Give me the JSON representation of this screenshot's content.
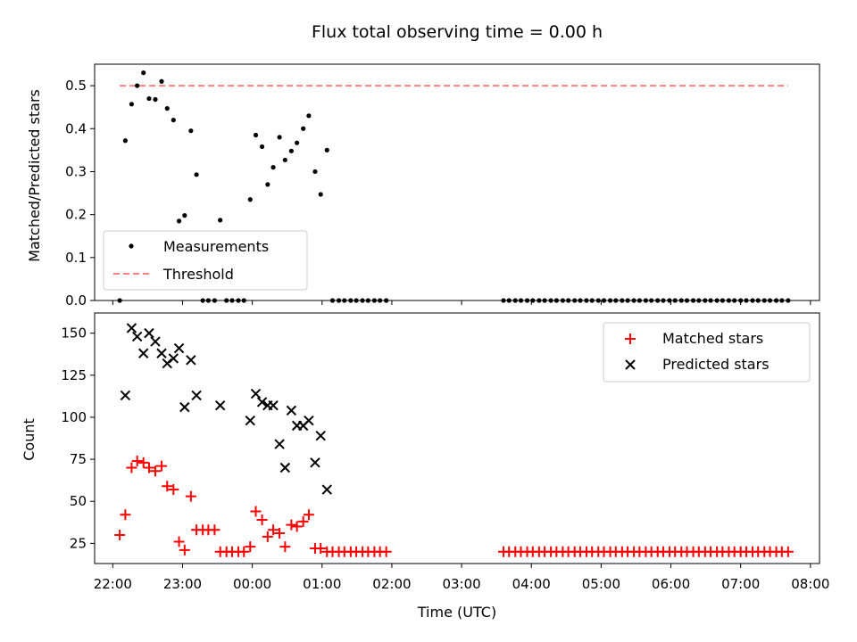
{
  "chart_data": [
    {
      "type": "scatter",
      "title": "Flux total observing time = 0.00 h",
      "xlabel": "",
      "ylabel": "Matched/Predicted stars",
      "ylim": [
        0,
        0.55
      ],
      "yticks": [
        "0.0",
        "0.1",
        "0.2",
        "0.3",
        "0.4",
        "0.5"
      ],
      "ytick_values": [
        0,
        0.1,
        0.2,
        0.3,
        0.4,
        0.5
      ],
      "legend_position": "bottom-left",
      "series": [
        {
          "name": "Measurements",
          "marker": "dot",
          "color": "#000000",
          "points": [
            [
              22.1,
              0
            ],
            [
              22.18,
              0.372
            ],
            [
              22.27,
              0.457
            ],
            [
              22.35,
              0.5
            ],
            [
              22.44,
              0.53
            ],
            [
              22.52,
              0.47
            ],
            [
              22.61,
              0.468
            ],
            [
              22.7,
              0.51
            ],
            [
              22.78,
              0.447
            ],
            [
              22.87,
              0.42
            ],
            [
              22.95,
              0.185
            ],
            [
              23.03,
              0.198
            ],
            [
              23.12,
              0.395
            ],
            [
              23.2,
              0.293
            ],
            [
              23.29,
              0
            ],
            [
              23.37,
              0
            ],
            [
              23.46,
              0
            ],
            [
              23.54,
              0.187
            ],
            [
              23.63,
              0
            ],
            [
              23.71,
              0
            ],
            [
              23.8,
              0
            ],
            [
              23.88,
              0
            ],
            [
              23.97,
              0.235
            ],
            [
              24.05,
              0.385
            ],
            [
              24.14,
              0.358
            ],
            [
              24.22,
              0.27
            ],
            [
              24.3,
              0.31
            ],
            [
              24.39,
              0.38
            ],
            [
              24.47,
              0.327
            ],
            [
              24.56,
              0.348
            ],
            [
              24.64,
              0.367
            ],
            [
              24.73,
              0.4
            ],
            [
              24.81,
              0.43
            ],
            [
              24.9,
              0.3
            ],
            [
              24.98,
              0.247
            ],
            [
              25.07,
              0.35
            ],
            [
              25.15,
              0
            ],
            [
              25.24,
              0
            ],
            [
              25.32,
              0
            ],
            [
              25.41,
              0
            ],
            [
              25.49,
              0
            ],
            [
              25.58,
              0
            ],
            [
              25.66,
              0
            ],
            [
              25.75,
              0
            ],
            [
              25.83,
              0
            ],
            [
              25.92,
              0
            ],
            [
              27.6,
              0
            ],
            [
              27.68,
              0
            ],
            [
              27.77,
              0
            ],
            [
              27.85,
              0
            ],
            [
              27.94,
              0
            ],
            [
              28.02,
              0
            ],
            [
              28.11,
              0
            ],
            [
              28.19,
              0
            ],
            [
              28.28,
              0
            ],
            [
              28.36,
              0
            ],
            [
              28.45,
              0
            ],
            [
              28.53,
              0
            ],
            [
              28.62,
              0
            ],
            [
              28.7,
              0
            ],
            [
              28.79,
              0
            ],
            [
              28.87,
              0
            ],
            [
              28.96,
              0
            ],
            [
              29.04,
              0
            ],
            [
              29.13,
              0
            ],
            [
              29.21,
              0
            ],
            [
              29.3,
              0
            ],
            [
              29.38,
              0
            ],
            [
              29.47,
              0
            ],
            [
              29.55,
              0
            ],
            [
              29.64,
              0
            ],
            [
              29.72,
              0
            ],
            [
              29.81,
              0
            ],
            [
              29.89,
              0
            ],
            [
              29.98,
              0
            ],
            [
              30.06,
              0
            ],
            [
              30.15,
              0
            ],
            [
              30.23,
              0
            ],
            [
              30.32,
              0
            ],
            [
              30.4,
              0
            ],
            [
              30.49,
              0
            ],
            [
              30.57,
              0
            ],
            [
              30.66,
              0
            ],
            [
              30.74,
              0
            ],
            [
              30.83,
              0
            ],
            [
              30.91,
              0
            ],
            [
              31.0,
              0
            ],
            [
              31.08,
              0
            ],
            [
              31.17,
              0
            ],
            [
              31.25,
              0
            ],
            [
              31.34,
              0
            ],
            [
              31.42,
              0
            ],
            [
              31.51,
              0
            ],
            [
              31.59,
              0
            ],
            [
              31.68,
              0
            ]
          ]
        },
        {
          "name": "Threshold",
          "marker": "dashed-line",
          "color": "#ff8080",
          "points": [
            [
              22.1,
              0.5
            ],
            [
              31.68,
              0.5
            ]
          ]
        }
      ]
    },
    {
      "type": "scatter",
      "title": "",
      "xlabel": "Time (UTC)",
      "ylabel": "Count",
      "xlim": [
        21.74,
        32.13
      ],
      "ylim": [
        13,
        162
      ],
      "yticks": [
        "25",
        "50",
        "75",
        "100",
        "125",
        "150"
      ],
      "ytick_values": [
        25,
        50,
        75,
        100,
        125,
        150
      ],
      "xtick_values": [
        22,
        23,
        24,
        25,
        26,
        27,
        28,
        29,
        30,
        31,
        32
      ],
      "xticks": [
        "22:00",
        "23:00",
        "00:00",
        "01:00",
        "02:00",
        "03:00",
        "04:00",
        "05:00",
        "06:00",
        "07:00",
        "08:00"
      ],
      "legend_position": "top-right",
      "series": [
        {
          "name": "Matched stars",
          "marker": "plus",
          "color": "#ff0000",
          "points": [
            [
              22.1,
              30
            ],
            [
              22.18,
              42
            ],
            [
              22.27,
              70
            ],
            [
              22.35,
              74
            ],
            [
              22.44,
              73
            ],
            [
              22.52,
              70
            ],
            [
              22.61,
              68
            ],
            [
              22.7,
              71
            ],
            [
              22.78,
              59
            ],
            [
              22.87,
              57
            ],
            [
              22.95,
              26
            ],
            [
              23.03,
              21
            ],
            [
              23.12,
              53
            ],
            [
              23.2,
              33
            ],
            [
              23.29,
              33
            ],
            [
              23.37,
              33
            ],
            [
              23.46,
              33
            ],
            [
              23.54,
              20
            ],
            [
              23.63,
              20
            ],
            [
              23.71,
              20
            ],
            [
              23.8,
              20
            ],
            [
              23.88,
              20
            ],
            [
              23.97,
              23
            ],
            [
              24.05,
              44
            ],
            [
              24.14,
              39
            ],
            [
              24.22,
              29
            ],
            [
              24.3,
              33
            ],
            [
              24.39,
              31
            ],
            [
              24.47,
              23
            ],
            [
              24.56,
              36
            ],
            [
              24.64,
              35
            ],
            [
              24.73,
              38
            ],
            [
              24.81,
              42
            ],
            [
              24.9,
              22
            ],
            [
              24.98,
              22
            ],
            [
              25.07,
              20
            ],
            [
              25.15,
              20
            ],
            [
              25.24,
              20
            ],
            [
              25.32,
              20
            ],
            [
              25.41,
              20
            ],
            [
              25.49,
              20
            ],
            [
              25.58,
              20
            ],
            [
              25.66,
              20
            ],
            [
              25.75,
              20
            ],
            [
              25.83,
              20
            ],
            [
              25.92,
              20
            ],
            [
              27.6,
              20
            ],
            [
              27.68,
              20
            ],
            [
              27.77,
              20
            ],
            [
              27.85,
              20
            ],
            [
              27.94,
              20
            ],
            [
              28.02,
              20
            ],
            [
              28.11,
              20
            ],
            [
              28.19,
              20
            ],
            [
              28.28,
              20
            ],
            [
              28.36,
              20
            ],
            [
              28.45,
              20
            ],
            [
              28.53,
              20
            ],
            [
              28.62,
              20
            ],
            [
              28.7,
              20
            ],
            [
              28.79,
              20
            ],
            [
              28.87,
              20
            ],
            [
              28.96,
              20
            ],
            [
              29.04,
              20
            ],
            [
              29.13,
              20
            ],
            [
              29.21,
              20
            ],
            [
              29.3,
              20
            ],
            [
              29.38,
              20
            ],
            [
              29.47,
              20
            ],
            [
              29.55,
              20
            ],
            [
              29.64,
              20
            ],
            [
              29.72,
              20
            ],
            [
              29.81,
              20
            ],
            [
              29.89,
              20
            ],
            [
              29.98,
              20
            ],
            [
              30.06,
              20
            ],
            [
              30.15,
              20
            ],
            [
              30.23,
              20
            ],
            [
              30.32,
              20
            ],
            [
              30.4,
              20
            ],
            [
              30.49,
              20
            ],
            [
              30.57,
              20
            ],
            [
              30.66,
              20
            ],
            [
              30.74,
              20
            ],
            [
              30.83,
              20
            ],
            [
              30.91,
              20
            ],
            [
              31.0,
              20
            ],
            [
              31.08,
              20
            ],
            [
              31.17,
              20
            ],
            [
              31.25,
              20
            ],
            [
              31.34,
              20
            ],
            [
              31.42,
              20
            ],
            [
              31.51,
              20
            ],
            [
              31.59,
              20
            ],
            [
              31.68,
              20
            ]
          ]
        },
        {
          "name": "Predicted stars",
          "marker": "x",
          "color": "#000000",
          "points": [
            [
              22.18,
              113
            ],
            [
              22.27,
              153
            ],
            [
              22.35,
              148
            ],
            [
              22.44,
              138
            ],
            [
              22.52,
              150
            ],
            [
              22.61,
              145
            ],
            [
              22.7,
              138
            ],
            [
              22.78,
              132
            ],
            [
              22.87,
              135
            ],
            [
              22.95,
              141
            ],
            [
              23.03,
              106
            ],
            [
              23.12,
              134
            ],
            [
              23.2,
              113
            ],
            [
              23.54,
              107
            ],
            [
              23.97,
              98
            ],
            [
              24.05,
              114
            ],
            [
              24.14,
              109
            ],
            [
              24.22,
              107
            ],
            [
              24.3,
              107
            ],
            [
              24.39,
              84
            ],
            [
              24.47,
              70
            ],
            [
              24.56,
              104
            ],
            [
              24.64,
              95
            ],
            [
              24.73,
              95
            ],
            [
              24.81,
              98
            ],
            [
              24.9,
              73
            ],
            [
              24.98,
              89
            ],
            [
              25.07,
              57
            ]
          ]
        }
      ]
    }
  ]
}
